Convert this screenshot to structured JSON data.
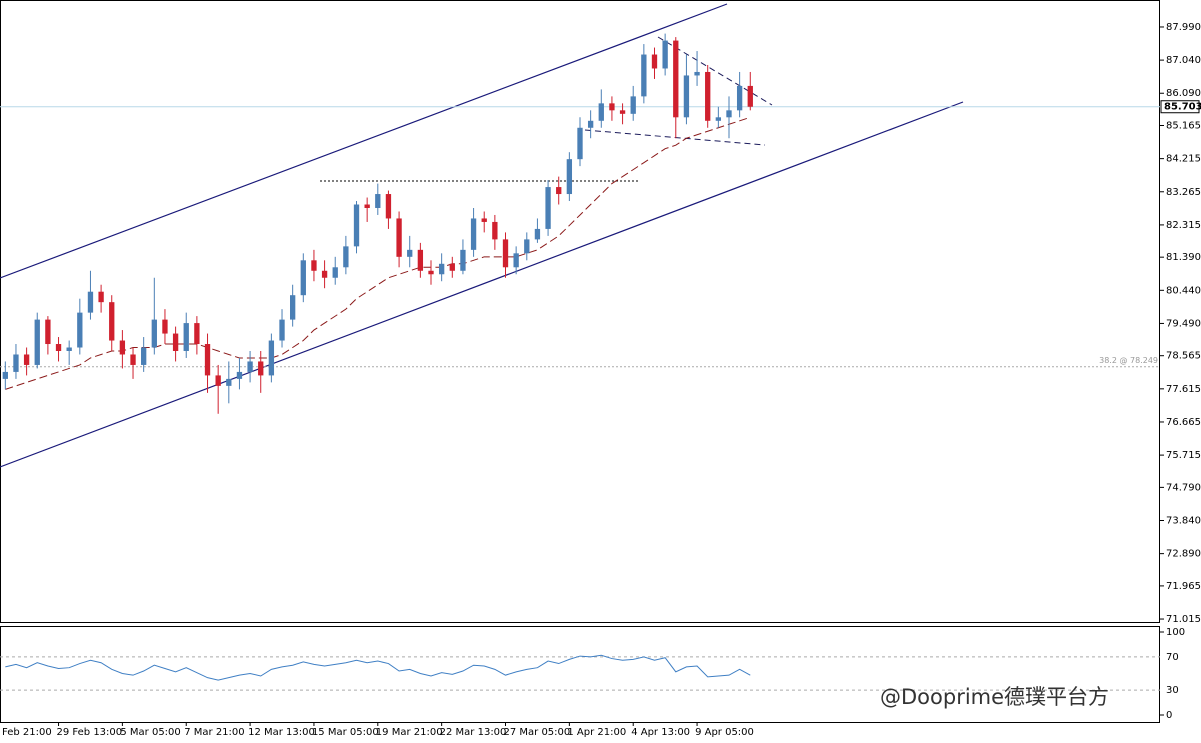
{
  "chart_data": [
    {
      "type": "candlestick",
      "xlim": [
        -0.5,
        108.5
      ],
      "xticks": [
        {
          "value": -1,
          "label": "Feb 21:00"
        },
        {
          "value": 5,
          "label": "29 Feb 13:00"
        },
        {
          "value": 11,
          "label": "5 Mar 05:00"
        },
        {
          "value": 17,
          "label": "7 Mar 21:00"
        },
        {
          "value": 23,
          "label": "12 Mar 13:00"
        },
        {
          "value": 29,
          "label": "15 Mar 05:00"
        },
        {
          "value": 35,
          "label": "19 Mar 21:00"
        },
        {
          "value": 41,
          "label": "22 Mar 13:00"
        },
        {
          "value": 47,
          "label": "27 Mar 05:00"
        },
        {
          "value": 53,
          "label": "1 Apr 21:00"
        },
        {
          "value": 59,
          "label": "4 Apr 13:00"
        },
        {
          "value": 65,
          "label": "9 Apr 05:00"
        }
      ],
      "ylim": [
        70.93,
        88.62
      ],
      "yticks": [
        {
          "value": 87.99,
          "label": "87.990"
        },
        {
          "value": 87.04,
          "label": "87.040"
        },
        {
          "value": 86.09,
          "label": "86.090"
        },
        85.165,
        84.215,
        83.265,
        82.315,
        {
          "value": 81.39,
          "label": "81.390"
        },
        {
          "value": 80.44,
          "label": "80.440"
        },
        {
          "value": 79.49,
          "label": "79.490"
        },
        78.565,
        77.615,
        76.665,
        75.715,
        {
          "value": 74.79,
          "label": "74.790"
        },
        {
          "value": 73.84,
          "label": "73.840"
        },
        {
          "value": 72.89,
          "label": "72.890"
        },
        71.965,
        71.015
      ],
      "up_color": "#4a7fb5",
      "down_color": "#d0202e",
      "open": [
        77.9,
        78.1,
        78.6,
        78.3,
        79.6,
        78.9,
        78.7,
        78.8,
        79.8,
        80.4,
        80.1,
        79.0,
        78.6,
        78.3,
        78.8,
        79.6,
        79.2,
        78.7,
        79.5,
        78.9,
        78.0,
        77.7,
        77.9,
        78.1,
        78.4,
        78.0,
        79.0,
        79.6,
        80.3,
        81.3,
        81.0,
        80.8,
        81.1,
        81.7,
        82.9,
        82.8,
        83.2,
        82.5,
        81.4,
        81.6,
        81.0,
        80.9,
        81.2,
        81.0,
        81.6,
        82.5,
        82.4,
        81.9,
        81.1,
        81.5,
        81.9,
        82.2,
        83.4,
        83.2,
        84.2,
        85.1,
        85.3,
        85.8,
        85.6,
        85.5,
        86.0,
        87.2,
        86.8,
        87.6,
        85.4,
        86.6,
        86.7,
        85.3,
        85.4,
        85.6,
        86.3
      ],
      "high": [
        78.4,
        78.9,
        78.8,
        79.8,
        79.7,
        79.1,
        79.0,
        80.2,
        81.0,
        80.6,
        80.3,
        79.3,
        78.8,
        79.1,
        80.8,
        79.9,
        79.4,
        79.8,
        79.7,
        79.2,
        78.3,
        78.4,
        78.5,
        78.7,
        78.7,
        79.2,
        79.9,
        80.6,
        81.5,
        81.6,
        81.3,
        81.4,
        82.0,
        83.0,
        83.1,
        83.5,
        83.3,
        82.7,
        82.0,
        81.8,
        81.3,
        81.5,
        81.4,
        81.9,
        82.8,
        82.7,
        82.6,
        82.1,
        81.7,
        82.1,
        82.5,
        83.6,
        83.7,
        84.4,
        85.4,
        85.6,
        86.2,
        86.0,
        85.8,
        86.3,
        87.5,
        87.4,
        87.8,
        87.7,
        87.2,
        87.3,
        86.9,
        85.7,
        86.0,
        86.7,
        86.7
      ],
      "low": [
        77.6,
        77.9,
        78.0,
        78.2,
        78.6,
        78.4,
        78.3,
        78.6,
        79.6,
        79.8,
        78.7,
        78.2,
        77.9,
        78.1,
        78.6,
        78.9,
        78.4,
        78.5,
        78.6,
        77.5,
        76.9,
        77.2,
        77.6,
        77.8,
        77.5,
        77.8,
        78.8,
        79.4,
        80.1,
        80.7,
        80.5,
        80.6,
        80.9,
        81.5,
        82.4,
        82.6,
        82.2,
        81.1,
        81.1,
        80.8,
        80.6,
        80.7,
        80.8,
        80.9,
        81.4,
        82.1,
        81.6,
        80.8,
        80.9,
        81.3,
        81.8,
        82.0,
        82.9,
        83.0,
        84.0,
        84.8,
        85.1,
        85.3,
        85.2,
        85.3,
        85.8,
        86.5,
        86.6,
        84.8,
        85.2,
        86.3,
        85.1,
        85.1,
        84.8,
        85.4,
        85.6
      ],
      "close": [
        78.1,
        78.6,
        78.3,
        79.6,
        78.9,
        78.7,
        78.8,
        79.8,
        80.4,
        80.1,
        79.0,
        78.6,
        78.3,
        78.8,
        79.6,
        79.2,
        78.7,
        79.5,
        78.9,
        78.0,
        77.7,
        77.9,
        78.1,
        78.4,
        78.0,
        79.0,
        79.6,
        80.3,
        81.3,
        81.0,
        80.8,
        81.1,
        81.7,
        82.9,
        82.8,
        83.2,
        82.5,
        81.4,
        81.6,
        81.0,
        80.9,
        81.2,
        81.0,
        81.6,
        82.5,
        82.4,
        81.9,
        81.1,
        81.5,
        81.9,
        82.2,
        83.4,
        83.2,
        84.2,
        85.1,
        85.3,
        85.8,
        85.6,
        85.5,
        86.0,
        87.2,
        86.8,
        87.6,
        85.4,
        86.6,
        86.7,
        85.3,
        85.4,
        85.6,
        86.3,
        85.703
      ],
      "series": [
        {
          "color": "#8b1a1a",
          "values": [
            77.6,
            77.7,
            77.8,
            77.9,
            78.0,
            78.1,
            78.2,
            78.3,
            78.5,
            78.6,
            78.7,
            78.7,
            78.8,
            78.8,
            78.8,
            78.9,
            78.9,
            78.9,
            78.9,
            78.8,
            78.7,
            78.6,
            78.5,
            78.5,
            78.5,
            78.5,
            78.6,
            78.8,
            79.0,
            79.3,
            79.5,
            79.7,
            79.9,
            80.2,
            80.4,
            80.6,
            80.8,
            80.9,
            81.0,
            81.1,
            81.1,
            81.1,
            81.2,
            81.2,
            81.3,
            81.4,
            81.4,
            81.4,
            81.4,
            81.5,
            81.6,
            81.8,
            82.0,
            82.3,
            82.6,
            82.9,
            83.2,
            83.5,
            83.7,
            83.9,
            84.1,
            84.3,
            84.5,
            84.6,
            84.8,
            84.9,
            85.0,
            85.1,
            85.2,
            85.3,
            85.4
          ]
        }
      ],
      "last_price": 85.703,
      "fib_level": 78.249,
      "fib_label": "38.2 @ 78.249"
    },
    {
      "type": "line",
      "xlim": [
        -0.5,
        108.5
      ],
      "ylim": [
        0,
        100
      ],
      "yticks": [
        0,
        30,
        70,
        100
      ],
      "series": [
        {
          "color": "#3f7fc4",
          "values": [
            58,
            61,
            57,
            63,
            59,
            56,
            57,
            62,
            66,
            63,
            55,
            50,
            48,
            53,
            60,
            56,
            52,
            57,
            51,
            45,
            42,
            45,
            48,
            50,
            47,
            55,
            58,
            60,
            64,
            61,
            59,
            61,
            63,
            66,
            63,
            65,
            62,
            53,
            55,
            50,
            47,
            51,
            49,
            53,
            60,
            59,
            55,
            48,
            52,
            55,
            57,
            65,
            62,
            67,
            71,
            70,
            72,
            68,
            66,
            67,
            70,
            66,
            69,
            52,
            58,
            59,
            46,
            47,
            48,
            55,
            48
          ]
        }
      ],
      "watermark": "@Dooprime德璞平台方"
    }
  ]
}
